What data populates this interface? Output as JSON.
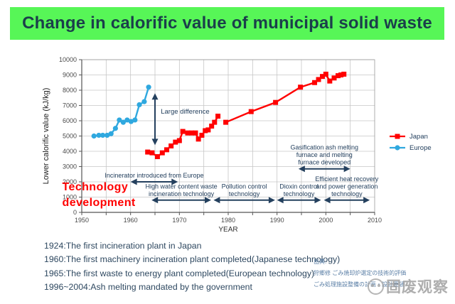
{
  "title": "Change in calorific value of municipal solid waste",
  "colors": {
    "banner_bg": "#57F657",
    "banner_text": "#1B3E4B",
    "japan": "#FF0000",
    "europe": "#2FA8DF",
    "annotation": "#24405E",
    "tech_dev_text": "#FF0000",
    "grid": "#C6C6C6",
    "axis": "#555555",
    "tick_label": "#4A4A4A",
    "notes_text": "#2E4860",
    "source_text": "#5B7FA6",
    "watermark": "#9B9B9B"
  },
  "chart_data": {
    "type": "line",
    "title": "",
    "xlabel": "YEAR",
    "ylabel": "Lower calorific value (kJ/kg)",
    "xlim": [
      1950,
      2010
    ],
    "ylim": [
      0,
      10000
    ],
    "x_major_ticks": [
      1950,
      1960,
      1970,
      1980,
      1990,
      2000,
      2010
    ],
    "x_minor_step": 5,
    "y_tick_step": 1000,
    "grid": true,
    "legend_position": "right",
    "series": [
      {
        "name": "Japan",
        "color": "#FF0000",
        "marker": "square",
        "segments": [
          [
            [
              1963.5,
              3950
            ],
            [
              1964.4,
              3900
            ],
            [
              1965.5,
              3650
            ],
            [
              1966.5,
              3900
            ],
            [
              1967.4,
              4100
            ],
            [
              1968.3,
              4350
            ],
            [
              1969.2,
              4600
            ],
            [
              1970,
              4700
            ],
            [
              1970.7,
              5300
            ],
            [
              1971.7,
              5200
            ],
            [
              1972.5,
              5200
            ],
            [
              1973.3,
              5200
            ],
            [
              1973.9,
              4800
            ],
            [
              1974.6,
              5050
            ],
            [
              1975.3,
              5350
            ],
            [
              1975.9,
              5400
            ],
            [
              1976.6,
              5650
            ],
            [
              1977.2,
              5900
            ],
            [
              1977.9,
              6300
            ]
          ],
          [
            [
              1979.5,
              5900
            ],
            [
              1984.7,
              6600
            ],
            [
              1989.7,
              7200
            ],
            [
              1994.8,
              8200
            ],
            [
              1997.7,
              8500
            ],
            [
              1998.5,
              8700
            ],
            [
              1999.3,
              8900
            ],
            [
              2000,
              9050
            ],
            [
              2000.8,
              8600
            ],
            [
              2001.7,
              8800
            ],
            [
              2002.5,
              8950
            ],
            [
              2003.1,
              9000
            ],
            [
              2003.7,
              9050
            ]
          ]
        ]
      },
      {
        "name": "Europe",
        "color": "#2FA8DF",
        "marker": "circle",
        "segments": [
          [
            [
              1952.5,
              5000
            ],
            [
              1953.5,
              5050
            ],
            [
              1954.3,
              5050
            ],
            [
              1955.2,
              5050
            ],
            [
              1956,
              5150
            ],
            [
              1956.9,
              5500
            ],
            [
              1957.7,
              6050
            ],
            [
              1958.5,
              5900
            ],
            [
              1959.3,
              6050
            ],
            [
              1960.1,
              5950
            ],
            [
              1960.9,
              6050
            ],
            [
              1961.8,
              7050
            ],
            [
              1962.8,
              7250
            ],
            [
              1963.7,
              8200
            ]
          ]
        ]
      }
    ],
    "annotations": {
      "vertical_arrow": {
        "label": "Large difference",
        "x": 1965,
        "y1": 4400,
        "y2": 7800,
        "label_x": 1966.2,
        "label_y": 6600
      },
      "tech_arrows": [
        {
          "lines": [
            "Incinerator introduced from Europe"
          ],
          "x1": 1960,
          "x2": 1969.7,
          "y": 2000
        },
        {
          "lines": [
            "High water content waste",
            "incineration technology"
          ],
          "x1": 1964.3,
          "x2": 1976.5,
          "y": 800
        },
        {
          "lines": [
            "Pollution control",
            "technology"
          ],
          "x1": 1977,
          "x2": 1989.6,
          "y": 800
        },
        {
          "lines": [
            "Dioxin control",
            "technology"
          ],
          "x1": 1990,
          "x2": 1999,
          "y": 800
        },
        {
          "lines": [
            "Efficient heat recovery",
            "and power generation",
            "technology"
          ],
          "x1": 1999.6,
          "x2": 2009,
          "y": 800
        },
        {
          "lines": [
            "Gasification ash melting",
            "furnace and melting",
            "furnace developed"
          ],
          "x1": 1994.4,
          "x2": 2005,
          "y": 2850
        }
      ],
      "side_text": {
        "lines": [
          "Technology",
          "development"
        ],
        "x": 1946,
        "y_baselines": [
          1450,
          420
        ]
      }
    }
  },
  "notes": [
    "1924:The first incineration plant in Japan",
    "1960:The first machinery incineration plant completed(Japanese technology)",
    "1965:The first waste to energy plant completed(European technology)",
    "1996~2004:Ash melting mandated by the government"
  ],
  "source": {
    "lines": [
      "出典:",
      "狩郷修 ごみ焼却炉選定の技術的評価",
      "ごみ処理施設整備の計画・設計要領"
    ]
  },
  "watermark": {
    "text": "固废观察"
  }
}
